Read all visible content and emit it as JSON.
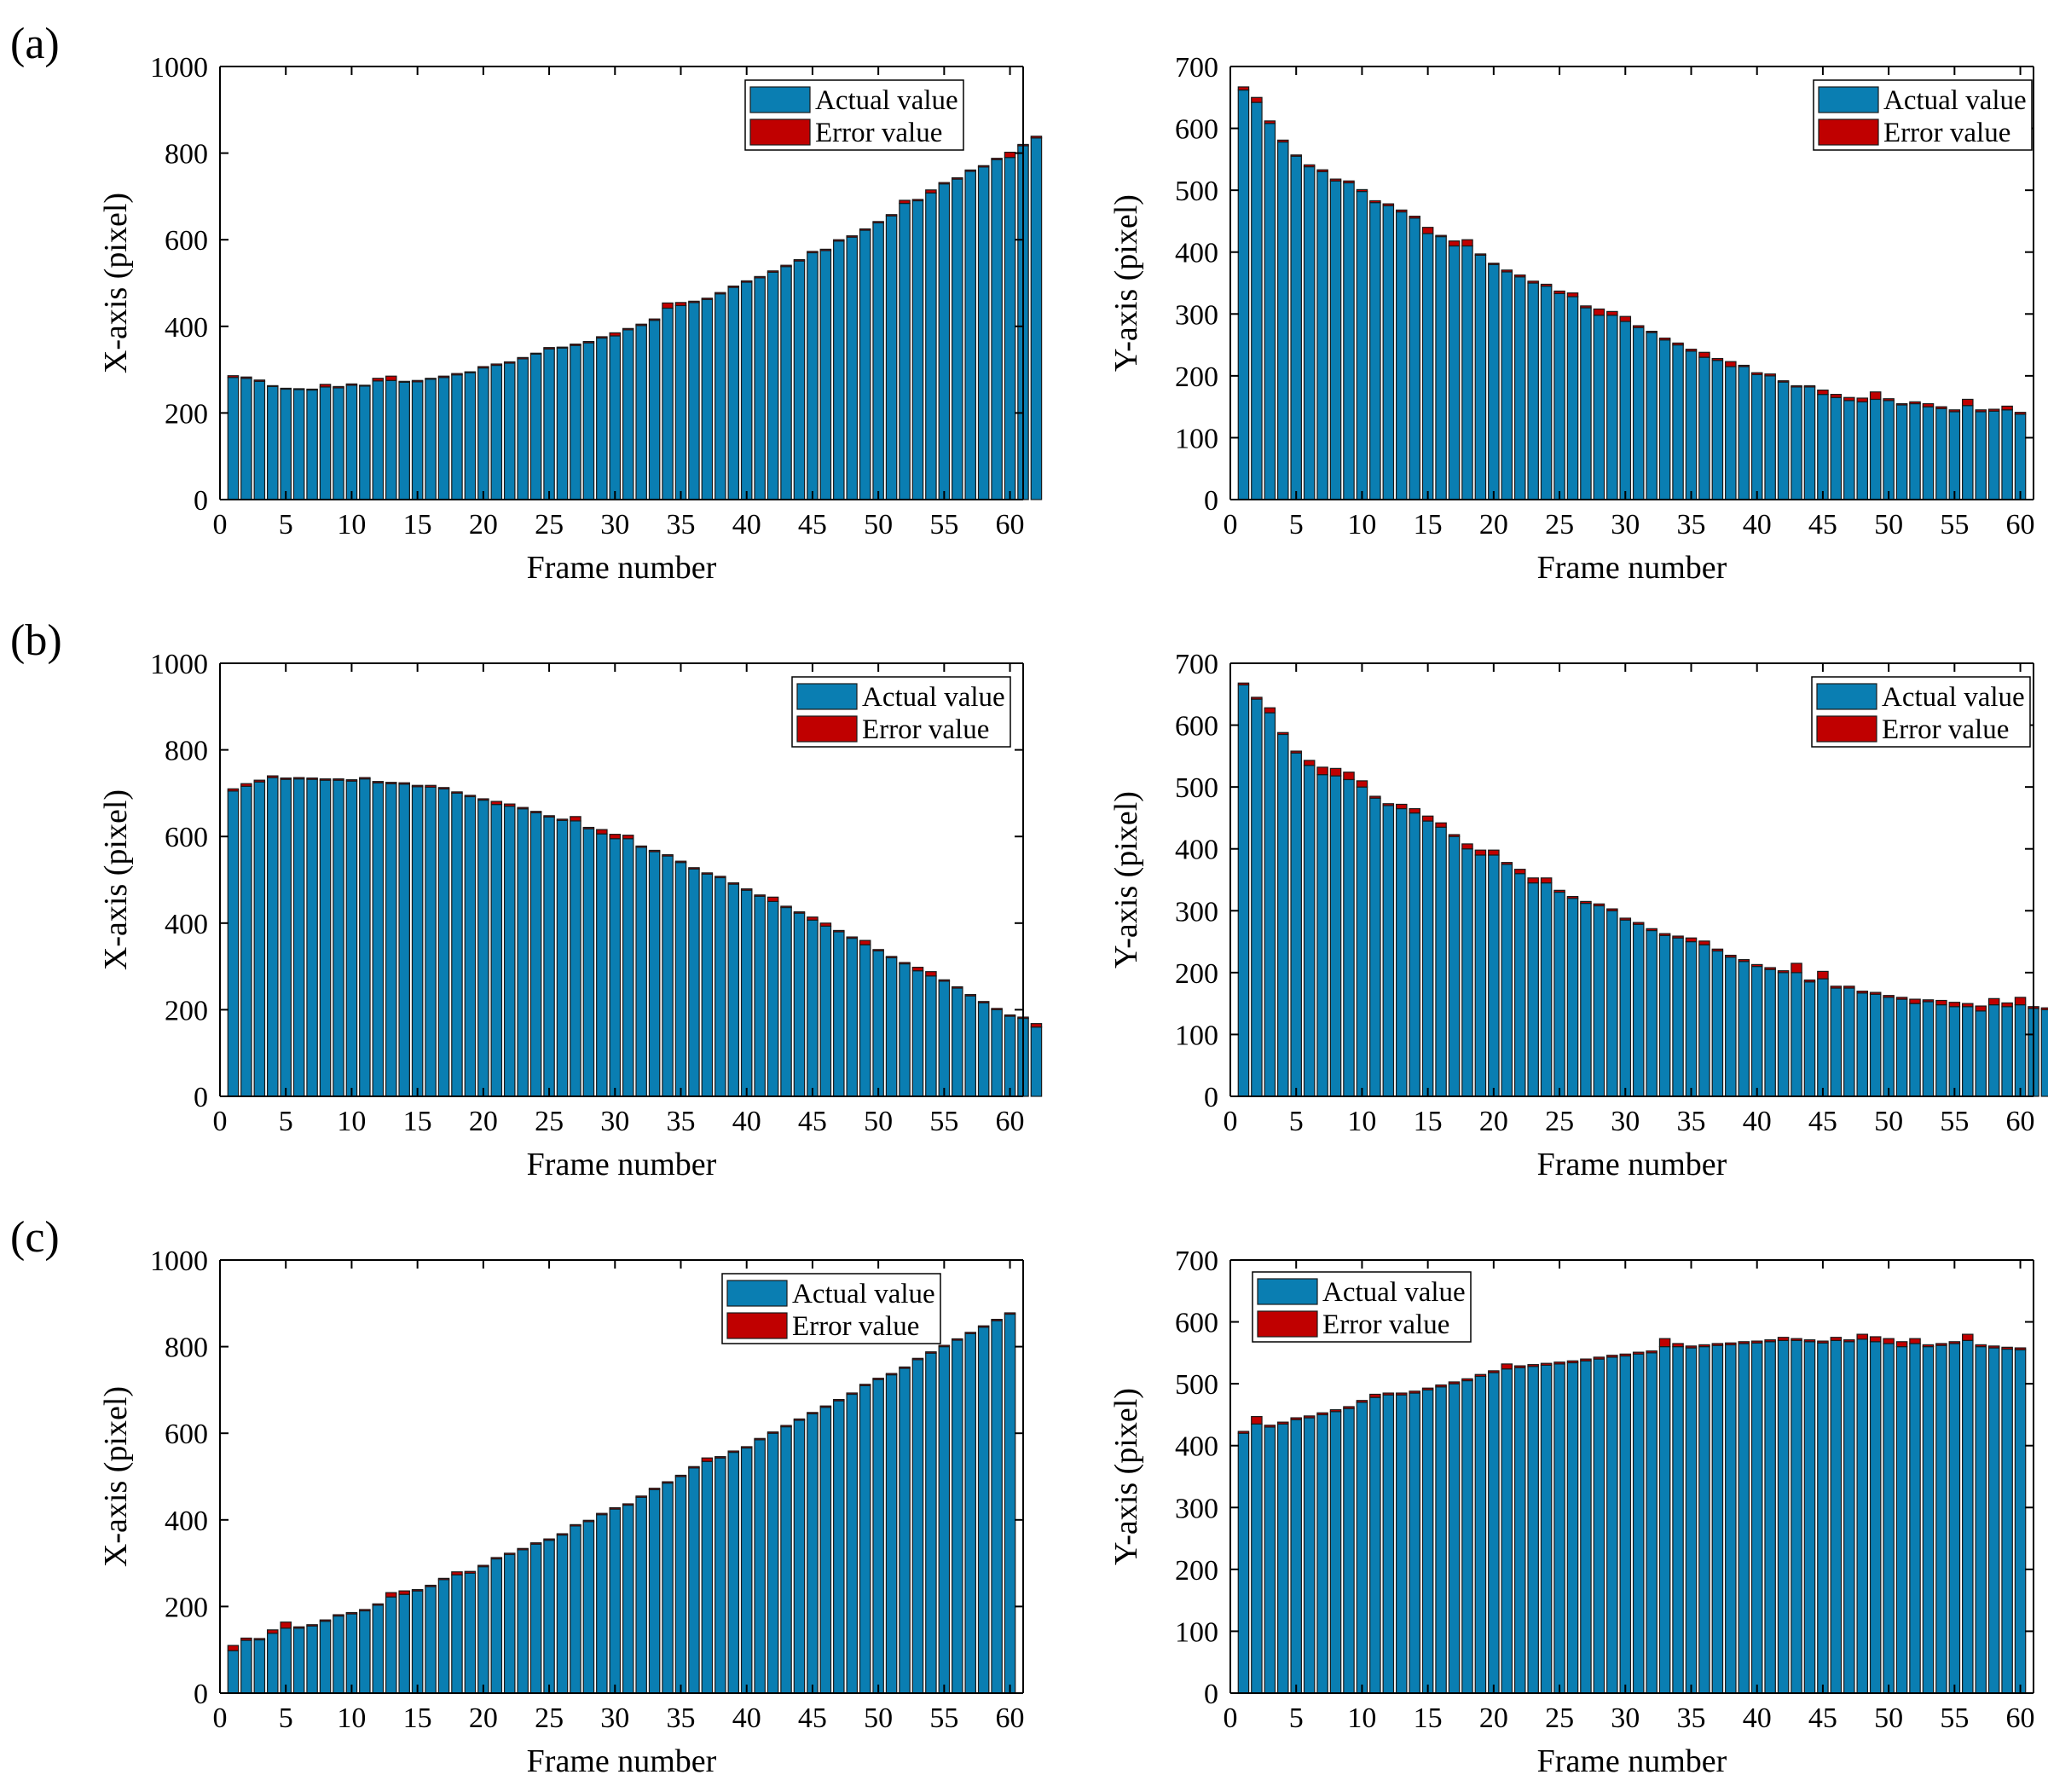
{
  "colors": {
    "actual": "#0a7eb2",
    "error": "#c00000",
    "axis": "#000000"
  },
  "chart_data": [
    {
      "panel": "(a)",
      "type": "bar",
      "stacked": true,
      "xlabel": "Frame number",
      "ylabel": "X-axis (pixel)",
      "xlim": [
        0,
        61
      ],
      "ylim": [
        0,
        1000
      ],
      "xticks": [
        "0",
        "5",
        "10",
        "15",
        "20",
        "25",
        "30",
        "35",
        "40",
        "45",
        "50",
        "55",
        "60"
      ],
      "yticks": [
        "0",
        "200",
        "400",
        "600",
        "800",
        "1000"
      ],
      "legend": {
        "placement": "top-right",
        "labels": [
          "Actual value",
          "Error value"
        ]
      },
      "series": [
        {
          "name": "Actual value",
          "values": [
            282,
            280,
            273,
            261,
            255,
            254,
            253,
            260,
            258,
            264,
            262,
            274,
            275,
            271,
            272,
            278,
            282,
            288,
            293,
            304,
            310,
            315,
            325,
            336,
            348,
            350,
            356,
            362,
            373,
            378,
            392,
            402,
            414,
            442,
            448,
            455,
            462,
            475,
            490,
            502,
            512,
            525,
            538,
            551,
            570,
            575,
            597,
            606,
            622,
            639,
            655,
            684,
            690,
            708,
            729,
            740,
            758,
            768,
            785,
            790,
            817,
            835
          ]
        },
        {
          "name": "Error value",
          "values": [
            4,
            3,
            3,
            2,
            2,
            2,
            2,
            6,
            3,
            3,
            2,
            6,
            10,
            2,
            3,
            2,
            3,
            3,
            2,
            3,
            3,
            3,
            3,
            2,
            3,
            2,
            3,
            3,
            3,
            7,
            3,
            3,
            3,
            12,
            7,
            3,
            3,
            3,
            3,
            3,
            3,
            3,
            3,
            3,
            3,
            3,
            3,
            3,
            3,
            3,
            3,
            7,
            3,
            7,
            3,
            3,
            3,
            3,
            3,
            12,
            3,
            4
          ]
        }
      ]
    },
    {
      "panel": "(a)",
      "type": "bar",
      "stacked": true,
      "xlabel": "Frame number",
      "ylabel": "Y-axis (pixel)",
      "xlim": [
        0,
        61
      ],
      "ylim": [
        0,
        700
      ],
      "xticks": [
        "0",
        "5",
        "10",
        "15",
        "20",
        "25",
        "30",
        "35",
        "40",
        "45",
        "50",
        "55",
        "60"
      ],
      "yticks": [
        "0",
        "100",
        "200",
        "300",
        "400",
        "500",
        "600",
        "700"
      ],
      "legend": {
        "placement": "top-right",
        "labels": [
          "Actual value",
          "Error value"
        ]
      },
      "series": [
        {
          "name": "Actual value",
          "values": [
            662,
            642,
            608,
            578,
            555,
            538,
            530,
            515,
            512,
            498,
            480,
            475,
            465,
            455,
            430,
            425,
            410,
            410,
            395,
            380,
            368,
            360,
            350,
            345,
            333,
            328,
            310,
            298,
            298,
            288,
            278,
            270,
            258,
            250,
            240,
            230,
            225,
            215,
            215,
            202,
            200,
            190,
            182,
            182,
            170,
            165,
            160,
            158,
            162,
            160,
            153,
            155,
            150,
            147,
            142,
            152,
            142,
            143,
            145,
            138
          ]
        },
        {
          "name": "Error value",
          "values": [
            5,
            8,
            4,
            3,
            2,
            3,
            3,
            3,
            3,
            3,
            3,
            3,
            3,
            3,
            10,
            2,
            8,
            10,
            2,
            2,
            3,
            3,
            3,
            3,
            4,
            6,
            3,
            10,
            6,
            8,
            3,
            2,
            3,
            3,
            3,
            8,
            3,
            8,
            2,
            3,
            3,
            2,
            2,
            2,
            7,
            5,
            5,
            6,
            12,
            3,
            2,
            3,
            5,
            3,
            3,
            10,
            3,
            3,
            6,
            3
          ]
        }
      ]
    },
    {
      "panel": "(b)",
      "type": "bar",
      "stacked": true,
      "xlabel": "Frame number",
      "ylabel": "X-axis (pixel)",
      "xlim": [
        0,
        61
      ],
      "ylim": [
        0,
        1000
      ],
      "xticks": [
        "0",
        "5",
        "10",
        "15",
        "20",
        "25",
        "30",
        "35",
        "40",
        "45",
        "50",
        "55",
        "60"
      ],
      "yticks": [
        "0",
        "200",
        "400",
        "600",
        "800",
        "1000"
      ],
      "legend": {
        "placement": "top-right",
        "labels": [
          "Actual value",
          "Error value"
        ]
      },
      "series": [
        {
          "name": "Actual value",
          "values": [
            705,
            716,
            726,
            736,
            732,
            733,
            732,
            730,
            730,
            728,
            733,
            724,
            722,
            721,
            715,
            714,
            710,
            700,
            692,
            684,
            674,
            670,
            664,
            655,
            645,
            637,
            636,
            618,
            606,
            595,
            595,
            575,
            565,
            555,
            540,
            525,
            513,
            505,
            490,
            476,
            462,
            450,
            436,
            423,
            407,
            393,
            380,
            365,
            350,
            336,
            320,
            306,
            290,
            278,
            266,
            250,
            232,
            216,
            200,
            185,
            180,
            160
          ]
        },
        {
          "name": "Error value",
          "values": [
            5,
            6,
            4,
            4,
            3,
            3,
            3,
            3,
            3,
            3,
            3,
            3,
            3,
            3,
            3,
            4,
            3,
            3,
            3,
            3,
            7,
            5,
            3,
            3,
            3,
            3,
            10,
            3,
            10,
            10,
            8,
            3,
            3,
            3,
            3,
            3,
            3,
            3,
            3,
            3,
            3,
            10,
            3,
            3,
            7,
            7,
            3,
            3,
            10,
            3,
            3,
            3,
            8,
            10,
            3,
            3,
            3,
            3,
            3,
            3,
            3,
            8
          ]
        }
      ]
    },
    {
      "panel": "(b)",
      "type": "bar",
      "stacked": true,
      "xlabel": "Frame number",
      "ylabel": "Y-axis (pixel)",
      "xlim": [
        0,
        61
      ],
      "ylim": [
        0,
        700
      ],
      "xticks": [
        "0",
        "5",
        "10",
        "15",
        "20",
        "25",
        "30",
        "35",
        "40",
        "45",
        "50",
        "55",
        "60"
      ],
      "yticks": [
        "0",
        "100",
        "200",
        "300",
        "400",
        "500",
        "600",
        "700"
      ],
      "legend": {
        "placement": "top-right",
        "labels": [
          "Actual value",
          "Error value"
        ]
      },
      "series": [
        {
          "name": "Actual value",
          "values": [
            665,
            642,
            620,
            585,
            555,
            535,
            520,
            518,
            512,
            500,
            482,
            470,
            465,
            458,
            445,
            435,
            420,
            400,
            390,
            390,
            375,
            360,
            345,
            345,
            330,
            320,
            312,
            308,
            300,
            285,
            278,
            268,
            260,
            256,
            250,
            245,
            235,
            225,
            218,
            210,
            205,
            200,
            200,
            185,
            190,
            175,
            175,
            167,
            165,
            160,
            157,
            150,
            153,
            148,
            145,
            145,
            138,
            148,
            145,
            148,
            142,
            140
          ]
        },
        {
          "name": "Error value",
          "values": [
            3,
            3,
            8,
            3,
            3,
            8,
            12,
            12,
            12,
            10,
            3,
            3,
            7,
            7,
            8,
            7,
            3,
            8,
            8,
            8,
            3,
            7,
            8,
            8,
            3,
            3,
            3,
            3,
            3,
            3,
            3,
            3,
            3,
            3,
            6,
            6,
            3,
            3,
            3,
            3,
            3,
            3,
            15,
            3,
            12,
            3,
            3,
            3,
            3,
            3,
            3,
            7,
            3,
            7,
            7,
            5,
            8,
            10,
            6,
            12,
            3,
            3
          ]
        }
      ]
    },
    {
      "panel": "(c)",
      "type": "bar",
      "stacked": true,
      "xlabel": "Frame number",
      "ylabel": "X-axis (pixel)",
      "xlim": [
        0,
        61
      ],
      "ylim": [
        0,
        1000
      ],
      "xticks": [
        "0",
        "5",
        "10",
        "15",
        "20",
        "25",
        "30",
        "35",
        "40",
        "45",
        "50",
        "55",
        "60"
      ],
      "yticks": [
        "0",
        "200",
        "400",
        "600",
        "800",
        "1000"
      ],
      "legend": {
        "placement": "top-center",
        "labels": [
          "Actual value",
          "Error value"
        ]
      },
      "series": [
        {
          "name": "Actual value",
          "values": [
            98,
            122,
            123,
            138,
            150,
            150,
            155,
            166,
            178,
            183,
            190,
            203,
            222,
            228,
            236,
            246,
            262,
            273,
            277,
            292,
            310,
            320,
            331,
            344,
            353,
            365,
            386,
            396,
            412,
            425,
            434,
            452,
            470,
            485,
            500,
            520,
            535,
            543,
            556,
            566,
            585,
            600,
            615,
            630,
            645,
            660,
            675,
            690,
            710,
            724,
            735,
            750,
            770,
            785,
            800,
            815,
            830,
            845,
            860,
            875
          ]
        },
        {
          "name": "Error value",
          "values": [
            12,
            5,
            3,
            8,
            14,
            3,
            3,
            3,
            3,
            3,
            3,
            3,
            10,
            8,
            3,
            3,
            3,
            7,
            4,
            3,
            3,
            3,
            3,
            3,
            3,
            3,
            3,
            3,
            3,
            3,
            3,
            3,
            3,
            3,
            3,
            3,
            8,
            3,
            3,
            3,
            3,
            3,
            3,
            3,
            3,
            3,
            3,
            3,
            3,
            3,
            3,
            3,
            3,
            3,
            3,
            3,
            3,
            3,
            3,
            3
          ]
        }
      ]
    },
    {
      "panel": "(c)",
      "type": "bar",
      "stacked": true,
      "xlabel": "Frame number",
      "ylabel": "Y-axis (pixel)",
      "xlim": [
        0,
        61
      ],
      "ylim": [
        0,
        700
      ],
      "xticks": [
        "0",
        "5",
        "10",
        "15",
        "20",
        "25",
        "30",
        "35",
        "40",
        "45",
        "50",
        "55",
        "60"
      ],
      "yticks": [
        "0",
        "100",
        "200",
        "300",
        "400",
        "500",
        "600",
        "700"
      ],
      "legend": {
        "placement": "top-left",
        "labels": [
          "Actual value",
          "Error value"
        ]
      },
      "series": [
        {
          "name": "Actual value",
          "values": [
            420,
            435,
            430,
            435,
            442,
            445,
            450,
            455,
            460,
            470,
            478,
            482,
            482,
            485,
            490,
            495,
            500,
            505,
            512,
            518,
            524,
            526,
            528,
            530,
            532,
            534,
            537,
            540,
            543,
            545,
            548,
            550,
            560,
            560,
            558,
            560,
            562,
            563,
            565,
            566,
            568,
            570,
            570,
            568,
            566,
            570,
            568,
            572,
            568,
            565,
            560,
            565,
            560,
            562,
            565,
            570,
            560,
            558,
            556,
            555
          ]
        },
        {
          "name": "Error value",
          "values": [
            3,
            12,
            3,
            3,
            3,
            3,
            3,
            3,
            3,
            3,
            5,
            3,
            3,
            3,
            3,
            3,
            3,
            3,
            3,
            3,
            8,
            3,
            3,
            3,
            3,
            3,
            3,
            3,
            3,
            3,
            3,
            3,
            13,
            5,
            3,
            3,
            3,
            3,
            3,
            3,
            3,
            5,
            3,
            3,
            3,
            5,
            3,
            8,
            8,
            8,
            8,
            8,
            3,
            3,
            3,
            10,
            3,
            3,
            3,
            3
          ]
        }
      ]
    }
  ]
}
